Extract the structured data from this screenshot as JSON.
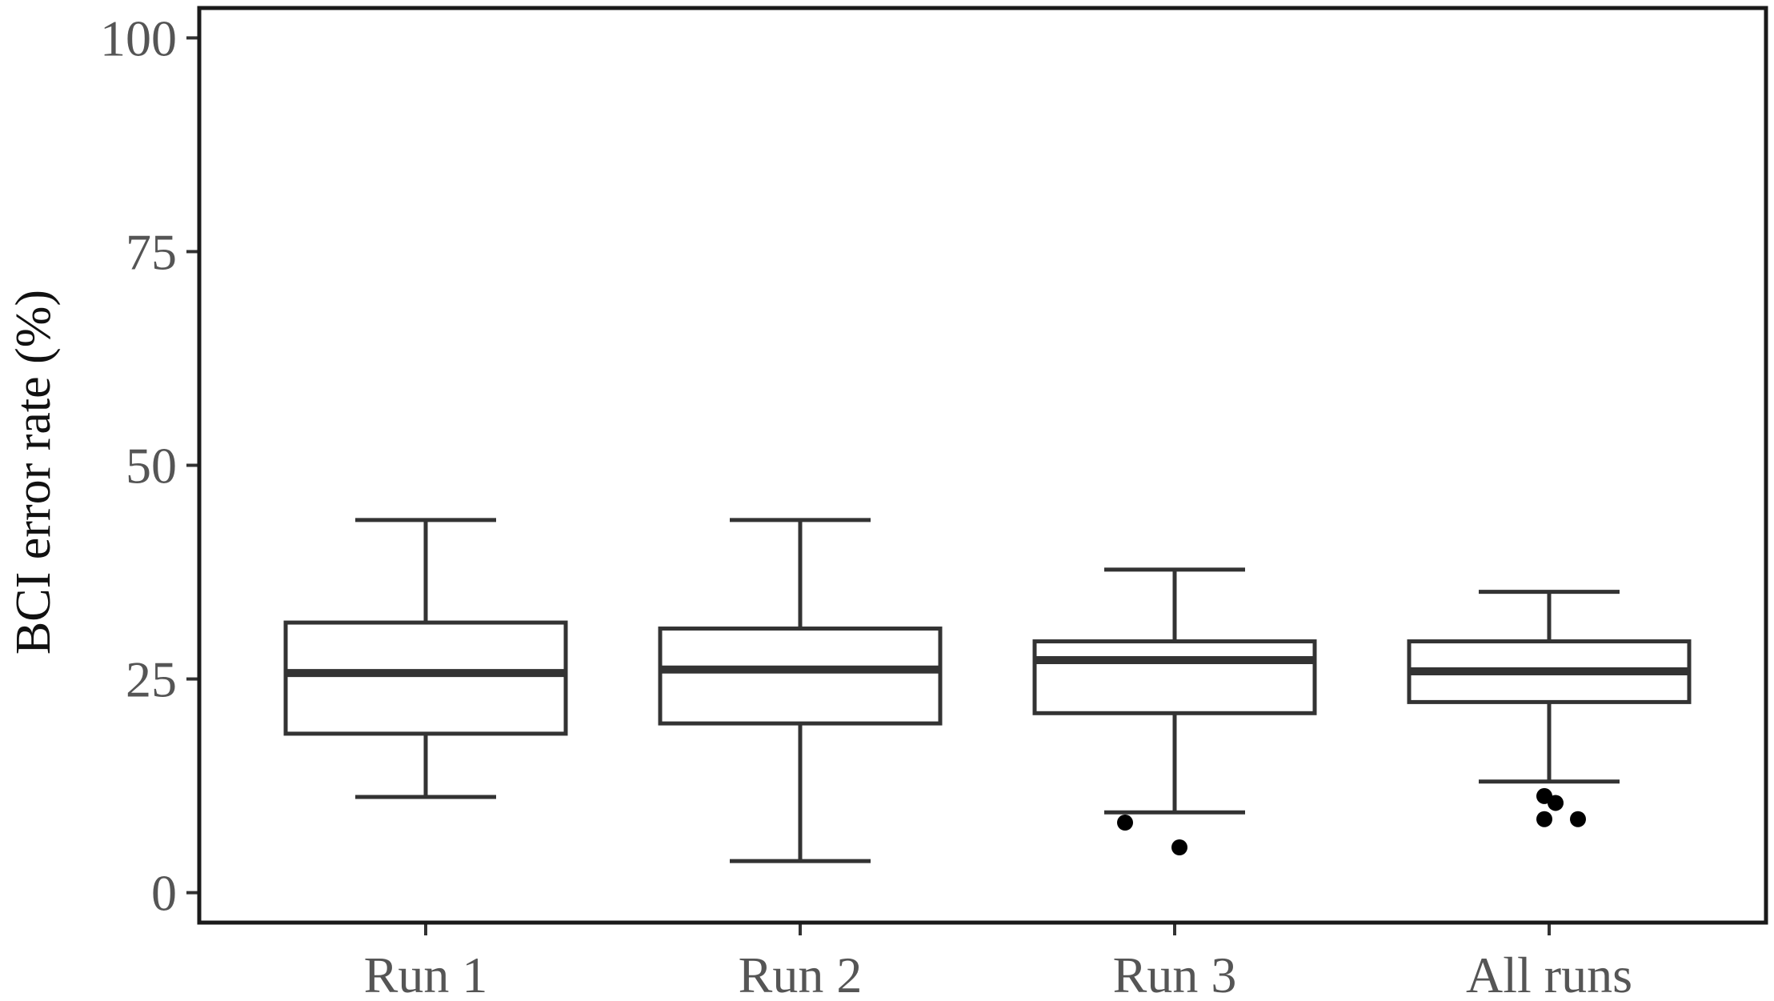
{
  "chart_data": {
    "type": "boxplot",
    "ylabel": "BCI error rate (%)",
    "xlabel": "",
    "title": "",
    "ylim": [
      -3.5,
      103.5
    ],
    "yticks": [
      0,
      25,
      50,
      75,
      100
    ],
    "grid": false,
    "categories": [
      "Run 1",
      "Run 2",
      "Run 3",
      "All runs"
    ],
    "boxes": [
      {
        "category": "Run 1",
        "whisker_low": 11.2,
        "q1": 18.6,
        "median": 25.7,
        "q3": 31.6,
        "whisker_high": 43.6,
        "outliers": []
      },
      {
        "category": "Run 2",
        "whisker_low": 3.7,
        "q1": 19.8,
        "median": 26.1,
        "q3": 30.9,
        "whisker_high": 43.6,
        "outliers": []
      },
      {
        "category": "Run 3",
        "whisker_low": 9.4,
        "q1": 21.0,
        "median": 27.2,
        "q3": 29.4,
        "whisker_high": 37.8,
        "outliers": [
          8.2,
          5.3
        ]
      },
      {
        "category": "All runs",
        "whisker_low": 13.0,
        "q1": 22.3,
        "median": 25.9,
        "q3": 29.4,
        "whisker_high": 35.2,
        "outliers": [
          11.3,
          10.5,
          8.6,
          8.6
        ]
      }
    ]
  }
}
